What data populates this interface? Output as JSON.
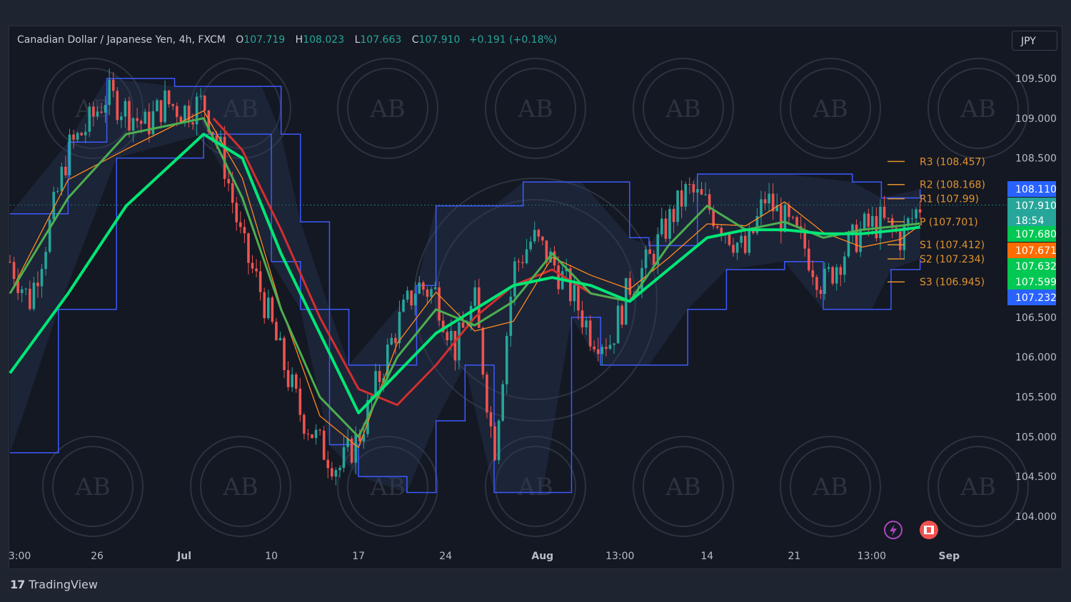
{
  "header": {
    "symbol": "Canadian Dollar / Japanese Yen, 4h, FXCM",
    "o_label": "O",
    "o_value": "107.719",
    "h_label": "H",
    "h_value": "108.023",
    "l_label": "L",
    "l_value": "107.663",
    "c_label": "C",
    "c_value": "107.910",
    "change": "+0.191 (+0.18%)"
  },
  "currency_button": "JPY",
  "brand": {
    "logo": "17",
    "name": "TradingView"
  },
  "watermark": {
    "text": "AB"
  },
  "colors": {
    "up": "#26a69a",
    "down": "#ef5350",
    "band": "#3d5afe",
    "ema_fast": "#4caf50",
    "ema_slow": "#00e676",
    "pivot": "#e1932e",
    "red_ma": "#d32f2f"
  },
  "chart_data": {
    "type": "line",
    "title": "Canadian Dollar / Japanese Yen, 4h, FXCM",
    "ylim": [
      103.7,
      109.9
    ],
    "y_ticks": [
      "109.500",
      "109.000",
      "108.500",
      "106.500",
      "106.000",
      "105.500",
      "105.000",
      "104.500",
      "104.000"
    ],
    "x_ticks": [
      "3:00",
      "26",
      "Jul",
      "10",
      "17",
      "24",
      "Aug",
      "13:00",
      "14",
      "21",
      "13:00",
      "Sep"
    ],
    "x_ticks_bold": [
      "Jul",
      "Aug",
      "Sep"
    ],
    "xlim": [
      0,
      100
    ],
    "x_tick_positions": [
      1,
      9,
      18,
      27,
      36,
      45,
      55,
      63,
      72,
      81,
      89,
      97
    ],
    "last_x": 94,
    "pivots": [
      {
        "label": "R3",
        "value": 108.457,
        "text": "(108.457)"
      },
      {
        "label": "R2",
        "value": 108.168,
        "text": "(108.168)"
      },
      {
        "label": "R1",
        "value": 107.99,
        "text": "(107.99)"
      },
      {
        "label": "P",
        "value": 107.701,
        "text": "(107.701)"
      },
      {
        "label": "S1",
        "value": 107.412,
        "text": "(107.412)"
      },
      {
        "label": "S2",
        "value": 107.234,
        "text": "(107.234)"
      },
      {
        "label": "S3",
        "value": 106.945,
        "text": "(106.945)"
      }
    ],
    "price_tags": [
      {
        "value": 108.11,
        "text": "108.110",
        "color": "#2962ff"
      },
      {
        "value": 107.91,
        "text": "107.910",
        "color": "#26a69a"
      },
      {
        "value": 107.68,
        "text": "107.680",
        "color": "#00c853"
      },
      {
        "value": 107.671,
        "text": "107.671",
        "color": "#ff6d00"
      },
      {
        "value": 107.632,
        "text": "107.632",
        "color": "#00c853"
      },
      {
        "value": 107.599,
        "text": "107.599",
        "color": "#00c853"
      },
      {
        "value": 107.232,
        "text": "107.232",
        "color": "#2962ff"
      }
    ],
    "countdown": "18:54",
    "price_series": [
      {
        "x": 0,
        "y": 107.2
      },
      {
        "x": 2,
        "y": 106.7
      },
      {
        "x": 4,
        "y": 107.6
      },
      {
        "x": 6,
        "y": 108.6
      },
      {
        "x": 8,
        "y": 108.9
      },
      {
        "x": 10,
        "y": 109.3
      },
      {
        "x": 12,
        "y": 109.1
      },
      {
        "x": 14,
        "y": 108.9
      },
      {
        "x": 16,
        "y": 109.2
      },
      {
        "x": 18,
        "y": 109.1
      },
      {
        "x": 20,
        "y": 109.2
      },
      {
        "x": 22,
        "y": 108.5
      },
      {
        "x": 24,
        "y": 107.4
      },
      {
        "x": 26,
        "y": 106.8
      },
      {
        "x": 28,
        "y": 106.0
      },
      {
        "x": 30,
        "y": 105.3
      },
      {
        "x": 32,
        "y": 104.9
      },
      {
        "x": 34,
        "y": 104.6
      },
      {
        "x": 36,
        "y": 105.0
      },
      {
        "x": 38,
        "y": 105.7
      },
      {
        "x": 40,
        "y": 106.4
      },
      {
        "x": 42,
        "y": 106.9
      },
      {
        "x": 44,
        "y": 106.8
      },
      {
        "x": 46,
        "y": 106.1
      },
      {
        "x": 48,
        "y": 106.7
      },
      {
        "x": 50,
        "y": 104.8
      },
      {
        "x": 52,
        "y": 107.1
      },
      {
        "x": 54,
        "y": 107.5
      },
      {
        "x": 56,
        "y": 107.2
      },
      {
        "x": 58,
        "y": 106.8
      },
      {
        "x": 60,
        "y": 106.3
      },
      {
        "x": 62,
        "y": 106.2
      },
      {
        "x": 64,
        "y": 106.9
      },
      {
        "x": 66,
        "y": 107.2
      },
      {
        "x": 68,
        "y": 107.7
      },
      {
        "x": 70,
        "y": 108.1
      },
      {
        "x": 72,
        "y": 107.9
      },
      {
        "x": 74,
        "y": 107.6
      },
      {
        "x": 76,
        "y": 107.3
      },
      {
        "x": 78,
        "y": 108.0
      },
      {
        "x": 80,
        "y": 107.7
      },
      {
        "x": 82,
        "y": 107.4
      },
      {
        "x": 84,
        "y": 106.9
      },
      {
        "x": 86,
        "y": 107.3
      },
      {
        "x": 88,
        "y": 107.6
      },
      {
        "x": 90,
        "y": 107.7
      },
      {
        "x": 92,
        "y": 107.5
      },
      {
        "x": 94,
        "y": 107.91
      }
    ],
    "upper_band": [
      {
        "x": 0,
        "y": 107.8
      },
      {
        "x": 6,
        "y": 108.7
      },
      {
        "x": 10,
        "y": 109.5
      },
      {
        "x": 17,
        "y": 109.4
      },
      {
        "x": 26,
        "y": 109.4
      },
      {
        "x": 28,
        "y": 108.8
      },
      {
        "x": 30,
        "y": 107.7
      },
      {
        "x": 33,
        "y": 106.6
      },
      {
        "x": 35,
        "y": 105.9
      },
      {
        "x": 42,
        "y": 106.9
      },
      {
        "x": 44,
        "y": 107.9
      },
      {
        "x": 50,
        "y": 107.9
      },
      {
        "x": 53,
        "y": 108.2
      },
      {
        "x": 59,
        "y": 108.2
      },
      {
        "x": 64,
        "y": 107.5
      },
      {
        "x": 66,
        "y": 107.4
      },
      {
        "x": 71,
        "y": 108.3
      },
      {
        "x": 80,
        "y": 108.3
      },
      {
        "x": 87,
        "y": 108.2
      },
      {
        "x": 90,
        "y": 108.0
      },
      {
        "x": 94,
        "y": 108.11
      }
    ],
    "lower_band": [
      {
        "x": 0,
        "y": 104.8
      },
      {
        "x": 5,
        "y": 106.6
      },
      {
        "x": 11,
        "y": 108.5
      },
      {
        "x": 20,
        "y": 108.8
      },
      {
        "x": 27,
        "y": 107.2
      },
      {
        "x": 30,
        "y": 106.6
      },
      {
        "x": 33,
        "y": 104.9
      },
      {
        "x": 36,
        "y": 104.5
      },
      {
        "x": 41,
        "y": 104.3
      },
      {
        "x": 44,
        "y": 105.2
      },
      {
        "x": 47,
        "y": 105.9
      },
      {
        "x": 50,
        "y": 104.3
      },
      {
        "x": 55,
        "y": 104.3
      },
      {
        "x": 58,
        "y": 106.5
      },
      {
        "x": 61,
        "y": 105.9
      },
      {
        "x": 66,
        "y": 105.9
      },
      {
        "x": 70,
        "y": 106.6
      },
      {
        "x": 74,
        "y": 107.1
      },
      {
        "x": 80,
        "y": 107.2
      },
      {
        "x": 84,
        "y": 106.6
      },
      {
        "x": 89,
        "y": 106.6
      },
      {
        "x": 91,
        "y": 107.1
      },
      {
        "x": 94,
        "y": 107.232
      }
    ],
    "ema_fast": [
      {
        "x": 0,
        "y": 106.8
      },
      {
        "x": 6,
        "y": 108.0
      },
      {
        "x": 12,
        "y": 108.8
      },
      {
        "x": 20,
        "y": 109.0
      },
      {
        "x": 24,
        "y": 108.0
      },
      {
        "x": 28,
        "y": 106.6
      },
      {
        "x": 32,
        "y": 105.5
      },
      {
        "x": 36,
        "y": 105.0
      },
      {
        "x": 40,
        "y": 106.0
      },
      {
        "x": 44,
        "y": 106.6
      },
      {
        "x": 48,
        "y": 106.4
      },
      {
        "x": 52,
        "y": 106.7
      },
      {
        "x": 56,
        "y": 107.3
      },
      {
        "x": 60,
        "y": 106.8
      },
      {
        "x": 64,
        "y": 106.7
      },
      {
        "x": 68,
        "y": 107.4
      },
      {
        "x": 72,
        "y": 107.9
      },
      {
        "x": 76,
        "y": 107.6
      },
      {
        "x": 80,
        "y": 107.7
      },
      {
        "x": 84,
        "y": 107.5
      },
      {
        "x": 88,
        "y": 107.6
      },
      {
        "x": 92,
        "y": 107.65
      },
      {
        "x": 94,
        "y": 107.68
      }
    ],
    "ema_slow": [
      {
        "x": 0,
        "y": 105.8
      },
      {
        "x": 6,
        "y": 106.8
      },
      {
        "x": 12,
        "y": 107.9
      },
      {
        "x": 20,
        "y": 108.8
      },
      {
        "x": 24,
        "y": 108.5
      },
      {
        "x": 28,
        "y": 107.3
      },
      {
        "x": 32,
        "y": 106.3
      },
      {
        "x": 36,
        "y": 105.3
      },
      {
        "x": 40,
        "y": 105.8
      },
      {
        "x": 44,
        "y": 106.3
      },
      {
        "x": 48,
        "y": 106.6
      },
      {
        "x": 52,
        "y": 106.9
      },
      {
        "x": 56,
        "y": 107.0
      },
      {
        "x": 60,
        "y": 106.9
      },
      {
        "x": 64,
        "y": 106.7
      },
      {
        "x": 68,
        "y": 107.1
      },
      {
        "x": 72,
        "y": 107.5
      },
      {
        "x": 76,
        "y": 107.6
      },
      {
        "x": 80,
        "y": 107.6
      },
      {
        "x": 84,
        "y": 107.55
      },
      {
        "x": 88,
        "y": 107.55
      },
      {
        "x": 92,
        "y": 107.6
      },
      {
        "x": 94,
        "y": 107.632
      }
    ],
    "red_ma": [
      {
        "x": 21,
        "y": 109.0
      },
      {
        "x": 24,
        "y": 108.6
      },
      {
        "x": 28,
        "y": 107.6
      },
      {
        "x": 32,
        "y": 106.5
      },
      {
        "x": 36,
        "y": 105.6
      },
      {
        "x": 40,
        "y": 105.4
      },
      {
        "x": 44,
        "y": 105.9
      },
      {
        "x": 48,
        "y": 106.5
      },
      {
        "x": 52,
        "y": 106.9
      },
      {
        "x": 56,
        "y": 107.1
      },
      {
        "x": 60,
        "y": 106.8
      },
      {
        "x": 64,
        "y": 106.7
      }
    ]
  }
}
